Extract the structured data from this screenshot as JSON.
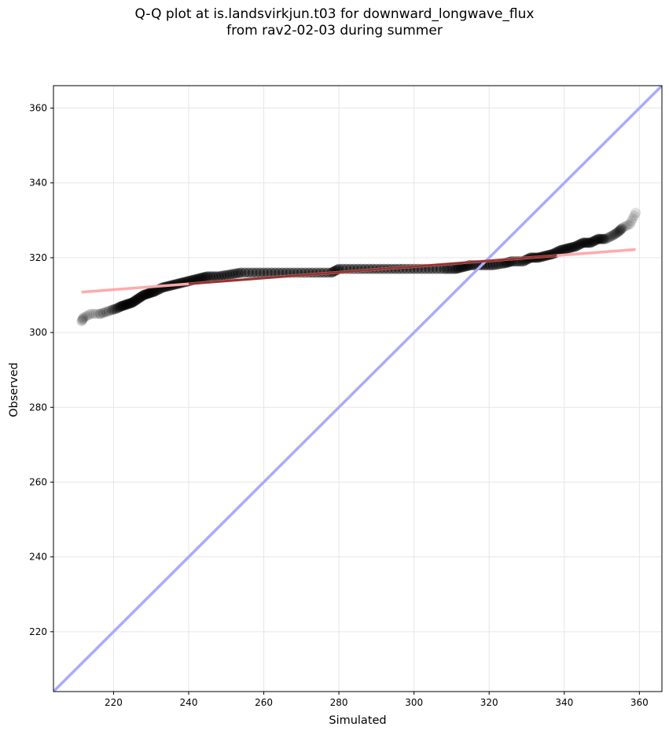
{
  "chart_data": {
    "type": "scatter",
    "title_line1": "Q-Q plot at is.landsvirkjun.t03 for downward_longwave_flux",
    "title_line2": "from rav2-02-03 during summer",
    "xlabel": "Simulated",
    "ylabel": "Observed",
    "xlim": [
      204,
      366
    ],
    "ylim": [
      204,
      366
    ],
    "x_ticks": [
      220,
      240,
      260,
      280,
      300,
      320,
      340,
      360
    ],
    "y_ticks": [
      220,
      240,
      260,
      280,
      300,
      320,
      340,
      360
    ],
    "grid": true,
    "colors": {
      "points": "#000000",
      "identity_line": "#aaaaff",
      "fit_line": "#ffaaaa",
      "fit_line_overlap": "#6b0000"
    },
    "fit_line": {
      "x": [
        211.5,
        359
      ],
      "y": [
        310.8,
        322.2
      ]
    },
    "identity_line": {
      "x": [
        204,
        366
      ],
      "y": [
        204,
        366
      ]
    },
    "series": [
      {
        "points": [
          [
            211.5,
            303.0
          ],
          [
            212.0,
            304.0
          ],
          [
            214.0,
            305.0
          ],
          [
            216.5,
            305.0
          ],
          [
            219.5,
            306.0
          ],
          [
            221.0,
            306.5
          ],
          [
            222.0,
            307.0
          ],
          [
            223.5,
            307.5
          ],
          [
            225.0,
            308.0
          ],
          [
            226.5,
            309.0
          ],
          [
            228.0,
            310.0
          ],
          [
            229.5,
            310.5
          ],
          [
            231.0,
            311.0
          ],
          [
            233.0,
            312.0
          ],
          [
            235.0,
            312.5
          ],
          [
            237.0,
            313.0
          ],
          [
            239.0,
            313.5
          ],
          [
            241.0,
            314.0
          ],
          [
            243.0,
            314.5
          ],
          [
            245.0,
            315.0
          ],
          [
            248.0,
            315.0
          ],
          [
            251.0,
            315.5
          ],
          [
            254.0,
            316.0
          ],
          [
            258.0,
            316.0
          ],
          [
            262.0,
            316.0
          ],
          [
            266.0,
            316.0
          ],
          [
            270.0,
            316.0
          ],
          [
            274.0,
            316.0
          ],
          [
            278.0,
            316.0
          ],
          [
            280.0,
            317.0
          ],
          [
            284.0,
            317.0
          ],
          [
            288.0,
            317.0
          ],
          [
            292.0,
            317.0
          ],
          [
            296.0,
            317.0
          ],
          [
            300.0,
            317.0
          ],
          [
            304.0,
            317.0
          ],
          [
            308.0,
            317.0
          ],
          [
            311.0,
            317.0
          ],
          [
            313.0,
            317.5
          ],
          [
            315.0,
            318.0
          ],
          [
            318.0,
            318.0
          ],
          [
            321.0,
            318.0
          ],
          [
            324.0,
            318.5
          ],
          [
            326.0,
            319.0
          ],
          [
            329.0,
            319.0
          ],
          [
            331.0,
            320.0
          ],
          [
            333.0,
            320.0
          ],
          [
            335.0,
            320.5
          ],
          [
            337.0,
            321.0
          ],
          [
            339.0,
            322.0
          ],
          [
            341.0,
            322.5
          ],
          [
            343.0,
            323.0
          ],
          [
            345.0,
            324.0
          ],
          [
            347.0,
            324.0
          ],
          [
            349.0,
            325.0
          ],
          [
            351.0,
            325.0
          ],
          [
            353.0,
            326.0
          ],
          [
            354.5,
            327.0
          ],
          [
            355.5,
            328.0
          ],
          [
            357.5,
            329.0
          ],
          [
            359.0,
            332.0
          ]
        ]
      }
    ]
  }
}
